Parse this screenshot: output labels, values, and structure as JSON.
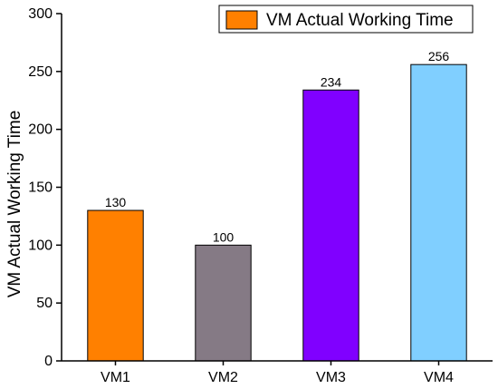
{
  "chart_data": {
    "type": "bar",
    "categories": [
      "VM1",
      "VM2",
      "VM3",
      "VM4"
    ],
    "values": [
      130,
      100,
      234,
      256
    ],
    "data_labels": [
      "130",
      "100",
      "234",
      "256"
    ],
    "colors": [
      "#FF8000",
      "#857A85",
      "#8000FF",
      "#80CFFF"
    ],
    "ylabel": "VM Actual Working Time",
    "xlabel": "",
    "ylim": [
      0,
      300
    ],
    "yticks": [
      "0",
      "50",
      "100",
      "150",
      "200",
      "250",
      "300"
    ],
    "legend": {
      "label": "VM Actual Working Time",
      "color": "#FF8000",
      "placement": "top-right"
    },
    "grid": false
  }
}
